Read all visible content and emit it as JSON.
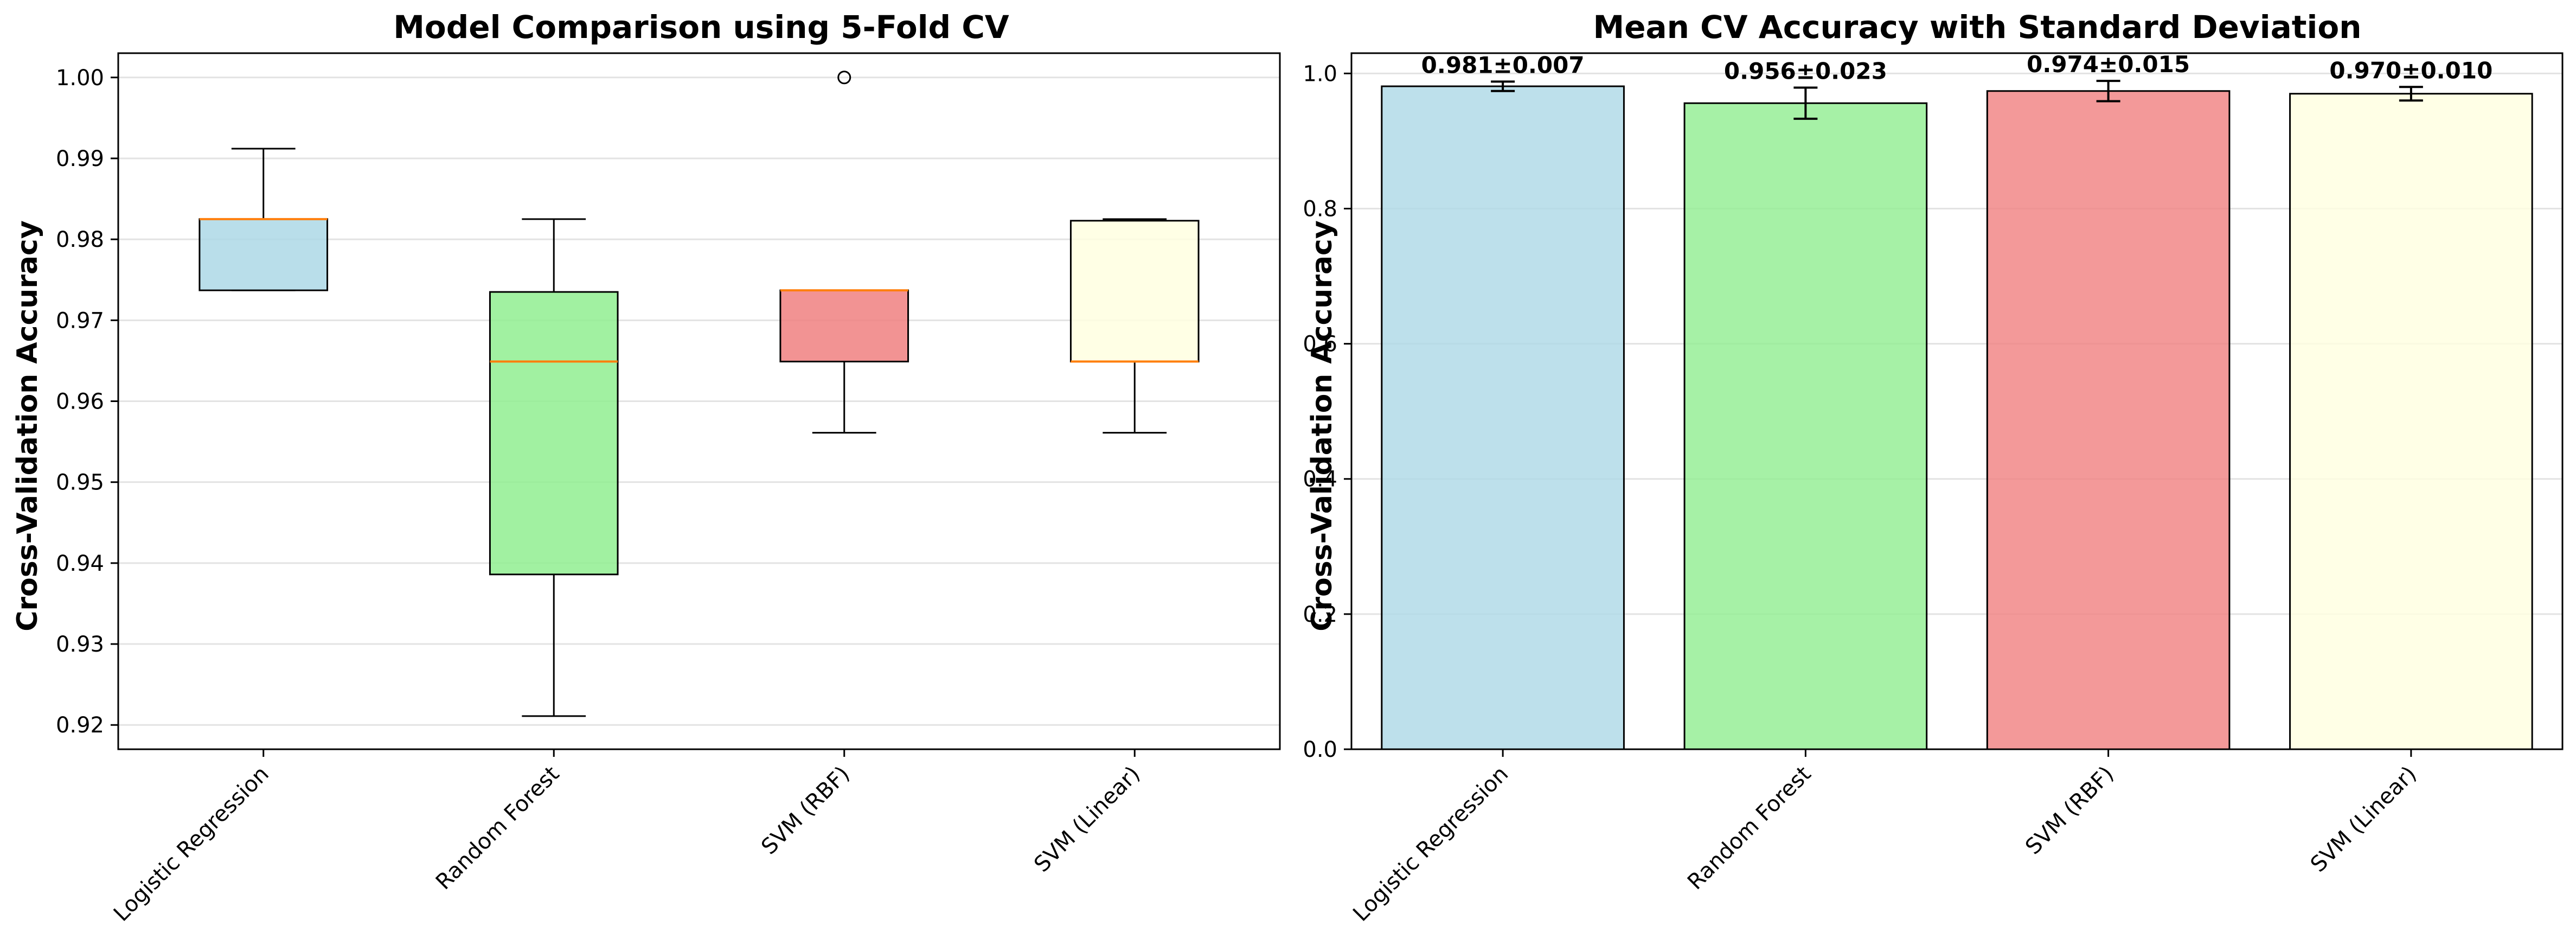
{
  "chart_data": [
    {
      "type": "box",
      "title": "Model Comparison using 5-Fold CV",
      "xlabel": "",
      "ylabel": "Cross-Validation Accuracy",
      "ylim": [
        0.917,
        1.003
      ],
      "yticks": [
        0.92,
        0.93,
        0.94,
        0.95,
        0.96,
        0.97,
        0.98,
        0.99,
        1.0
      ],
      "grid": "y",
      "categories": [
        "Logistic Regression",
        "Random Forest",
        "SVM (RBF)",
        "SVM (Linear)"
      ],
      "colors": [
        "#add8e6",
        "#90ee90",
        "#f08080",
        "#ffffe0"
      ],
      "median_color": "#ff7f0e",
      "boxes": [
        {
          "whislo": 0.9737,
          "q1": 0.9737,
          "med": 0.9825,
          "q3": 0.9825,
          "whishi": 0.9912,
          "fliers": []
        },
        {
          "whislo": 0.9211,
          "q1": 0.9386,
          "med": 0.9649,
          "q3": 0.9735,
          "whishi": 0.9825,
          "fliers": []
        },
        {
          "whislo": 0.9561,
          "q1": 0.9649,
          "med": 0.9737,
          "q3": 0.9737,
          "whishi": 0.9737,
          "fliers": [
            1.0
          ]
        },
        {
          "whislo": 0.9561,
          "q1": 0.9649,
          "med": 0.9649,
          "q3": 0.9823,
          "whishi": 0.9825,
          "fliers": []
        }
      ]
    },
    {
      "type": "bar",
      "title": "Mean CV Accuracy with Standard Deviation",
      "xlabel": "",
      "ylabel": "Cross-Validation Accuracy",
      "ylim": [
        0,
        1.03
      ],
      "yticks": [
        0.0,
        0.2,
        0.4,
        0.6,
        0.8,
        1.0
      ],
      "grid": "y",
      "categories": [
        "Logistic Regression",
        "Random Forest",
        "SVM (RBF)",
        "SVM (Linear)"
      ],
      "colors": [
        "#add8e6",
        "#90ee90",
        "#f08080",
        "#ffffe0"
      ],
      "values": [
        0.981,
        0.956,
        0.974,
        0.97
      ],
      "errors": [
        0.007,
        0.023,
        0.015,
        0.01
      ],
      "labels": [
        "0.981±0.007",
        "0.956±0.023",
        "0.974±0.015",
        "0.970±0.010"
      ]
    }
  ]
}
